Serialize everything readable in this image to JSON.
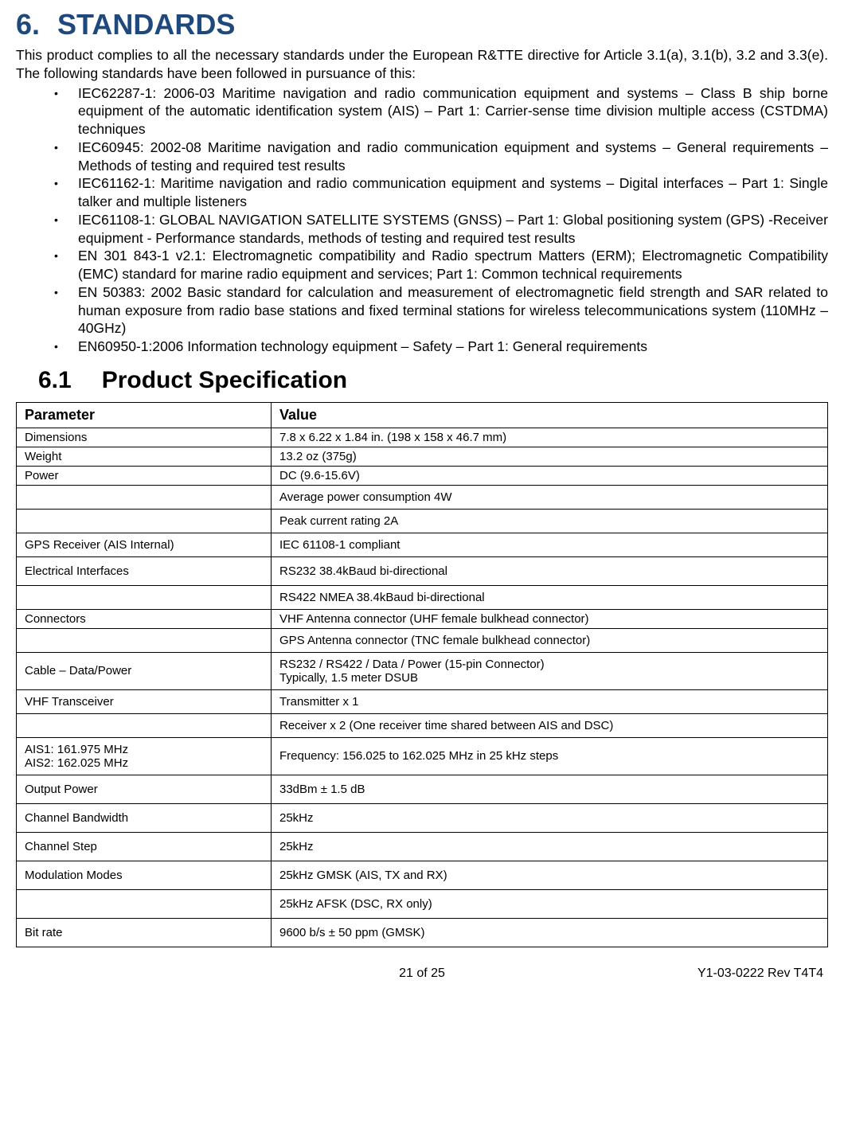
{
  "section": {
    "number": "6.",
    "title": "STANDARDS",
    "intro": "This product complies to all the necessary standards under the European R&TTE directive for Article 3.1(a), 3.1(b), 3.2 and 3.3(e).  The following standards have been followed in pursuance of this:",
    "bullets": [
      "IEC62287-1: 2006-03 Maritime navigation and radio communication equipment and systems – Class B ship borne equipment of the automatic identification system (AIS) – Part 1: Carrier-sense time division multiple access (CSTDMA) techniques",
      "IEC60945: 2002-08 Maritime navigation and radio communication equipment and systems – General requirements – Methods of testing and required test results",
      "IEC61162-1: Maritime navigation and radio communication equipment and systems – Digital interfaces – Part 1: Single talker and multiple listeners",
      "IEC61108-1: GLOBAL NAVIGATION SATELLITE SYSTEMS (GNSS) – Part 1: Global positioning system (GPS) -Receiver equipment - Performance standards, methods of testing and required test results",
      "EN 301 843-1 v2.1: Electromagnetic compatibility and Radio spectrum Matters (ERM); Electromagnetic Compatibility (EMC) standard for marine radio equipment and services; Part 1: Common technical requirements",
      "EN 50383: 2002 Basic standard for calculation and measurement of electromagnetic field strength and SAR related to human exposure from radio base stations and fixed terminal stations for wireless telecommunications system (110MHz – 40GHz)",
      "EN60950-1:2006 Information technology equipment – Safety – Part 1: General requirements"
    ]
  },
  "subsection": {
    "number": "6.1",
    "title": "Product Specification"
  },
  "table": {
    "headers": [
      "Parameter",
      "Value"
    ],
    "rows": [
      {
        "p": "Dimensions",
        "v": "7.8 x 6.22 x 1.84 in. (198 x 158 x 46.7 mm)",
        "cls": "tight"
      },
      {
        "p": "Weight",
        "v": "13.2 oz (375g)",
        "cls": "tight"
      },
      {
        "p": "Power",
        "v": "DC (9.6-15.6V)",
        "cls": "tight"
      },
      {
        "p": "",
        "v": "Average power consumption 4W",
        "cls": ""
      },
      {
        "p": "",
        "v": "Peak current rating 2A",
        "cls": ""
      },
      {
        "p": "GPS Receiver (AIS Internal)",
        "v": "IEC 61108-1 compliant",
        "cls": ""
      },
      {
        "p": "Electrical Interfaces",
        "v": "RS232 38.4kBaud bi-directional",
        "cls": "pad"
      },
      {
        "p": "",
        "v": "RS422 NMEA 38.4kBaud bi-directional",
        "cls": ""
      },
      {
        "p": "Connectors",
        "v": "VHF Antenna connector (UHF female bulkhead connector)",
        "cls": "tight"
      },
      {
        "p": "",
        "v": "GPS Antenna connector (TNC female bulkhead connector)",
        "cls": ""
      },
      {
        "p": "Cable – Data/Power",
        "v": "RS232 / RS422 / Data / Power (15-pin Connector)\nTypically, 1.5 meter DSUB",
        "cls": ""
      },
      {
        "p": "VHF Transceiver",
        "v": "Transmitter x 1",
        "cls": ""
      },
      {
        "p": "",
        "v": "Receiver x 2  (One receiver time shared between AIS and DSC)",
        "cls": ""
      },
      {
        "p": "AIS1: 161.975 MHz\nAIS2: 162.025 MHz",
        "v": "Frequency: 156.025 to 162.025 MHz in 25 kHz steps",
        "cls": ""
      },
      {
        "p": "Output Power",
        "v": "33dBm ± 1.5 dB",
        "cls": "pad"
      },
      {
        "p": "Channel Bandwidth",
        "v": "25kHz",
        "cls": "pad"
      },
      {
        "p": "Channel Step",
        "v": "25kHz",
        "cls": "pad"
      },
      {
        "p": "Modulation Modes",
        "v": "25kHz GMSK (AIS, TX and RX)",
        "cls": "pad"
      },
      {
        "p": "",
        "v": "25kHz AFSK (DSC, RX only)",
        "cls": "pad"
      },
      {
        "p": "Bit rate",
        "v": "9600 b/s ± 50 ppm (GMSK)",
        "cls": "pad"
      }
    ]
  },
  "footer": {
    "page": "21 of 25",
    "doc": "Y1-03-0222 Rev T4T4"
  },
  "colors": {
    "heading": "#1F497D",
    "text": "#000000",
    "border": "#000000",
    "background": "#ffffff"
  }
}
